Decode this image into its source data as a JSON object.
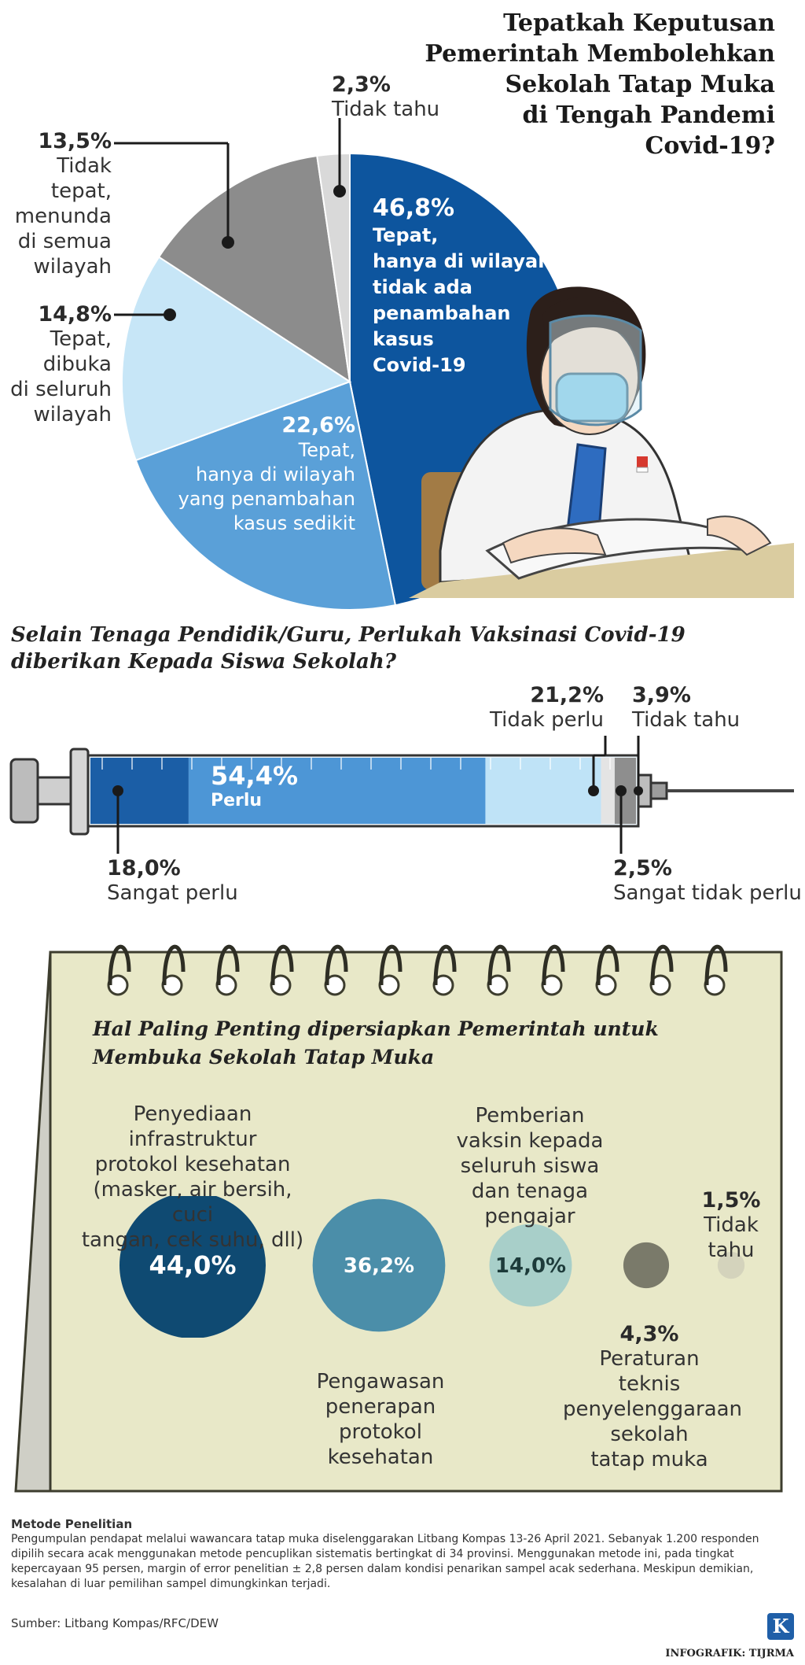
{
  "chart_data": [
    {
      "type": "pie",
      "title": "Tepatkah Keputusan Pemerintah Membolehkan Sekolah Tatap Muka di Tengah Pandemi Covid-19?",
      "slices": [
        {
          "value": 46.8,
          "pct": "46,8%",
          "label": "Tepat, hanya di wilayah tidak ada penambahan kasus Covid-19",
          "lines": [
            "Tepat,",
            "hanya di wilayah",
            "tidak ada",
            "penambahan",
            "kasus",
            "Covid-19"
          ],
          "color": "#0d559e"
        },
        {
          "value": 22.6,
          "pct": "22,6%",
          "label": "Tepat, hanya di wilayah yang penambahan kasus sedikit",
          "lines": [
            "Tepat,",
            "hanya di wilayah",
            "yang penambahan",
            "kasus sedikit"
          ],
          "color": "#5aa0d8"
        },
        {
          "value": 14.8,
          "pct": "14,8%",
          "label": "Tepat, dibuka di seluruh wilayah",
          "lines": [
            "Tepat,",
            "dibuka",
            "di seluruh",
            "wilayah"
          ],
          "color": "#c7e6f7"
        },
        {
          "value": 13.5,
          "pct": "13,5%",
          "label": "Tidak tepat, menunda di semua wilayah",
          "lines": [
            "Tidak tepat,",
            "menunda",
            "di semua",
            "wilayah"
          ],
          "color": "#8c8c8c"
        },
        {
          "value": 2.3,
          "pct": "2,3%",
          "label": "Tidak tahu",
          "lines": [
            "Tidak tahu"
          ],
          "color": "#d9d9d9"
        }
      ]
    },
    {
      "type": "bar",
      "subtype": "stacked-syringe",
      "title": "Selain Tenaga Pendidik/Guru, Perlukah Vaksinasi Covid-19 diberikan Kepada Siswa Sekolah?",
      "segments": [
        {
          "value": 18.0,
          "pct": "18,0%",
          "label": "Sangat perlu",
          "color": "#1b5ea6"
        },
        {
          "value": 54.4,
          "pct": "54,4%",
          "label": "Perlu",
          "color": "#4d96d6"
        },
        {
          "value": 21.2,
          "pct": "21,2%",
          "label": "Tidak perlu",
          "color": "#bfe3f7"
        },
        {
          "value": 2.5,
          "pct": "2,5%",
          "label": "Sangat tidak perlu",
          "color": "#e4e4e4"
        },
        {
          "value": 3.9,
          "pct": "3,9%",
          "label": "Tidak tahu",
          "color": "#8e8e8e"
        }
      ]
    },
    {
      "type": "scatter",
      "subtype": "bubble",
      "title": "Hal Paling Penting dipersiapkan Pemerintah untuk Membuka Sekolah Tatap Muka",
      "bubbles": [
        {
          "value": 44.0,
          "pct": "44,0%",
          "label": "Penyediaan infrastruktur protokol kesehatan (masker, air bersih, cuci tangan, cek suhu, dll)",
          "lines": [
            "Penyediaan infrastruktur",
            "protokol kesehatan",
            "(masker, air bersih, cuci",
            "tangan, cek suhu, dll)"
          ],
          "color": "#0f4a72"
        },
        {
          "value": 36.2,
          "pct": "36,2%",
          "label": "Pengawasan penerapan protokol kesehatan",
          "lines": [
            "Pengawasan",
            "penerapan protokol",
            "kesehatan"
          ],
          "color": "#4b8ea9"
        },
        {
          "value": 14.0,
          "pct": "14,0%",
          "label": "Pemberian vaksin kepada seluruh siswa dan tenaga pengajar",
          "lines": [
            "Pemberian",
            "vaksin kepada",
            "seluruh siswa",
            "dan tenaga",
            "pengajar"
          ],
          "color": "#a8cfc9"
        },
        {
          "value": 4.3,
          "pct": "4,3%",
          "label": "Peraturan teknis penyelenggaraan sekolah tatap muka",
          "lines": [
            "Peraturan",
            "teknis",
            "penyelenggaraan",
            "sekolah",
            "tatap muka"
          ],
          "color": "#7a7a6a"
        },
        {
          "value": 1.5,
          "pct": "1,5%",
          "label": "Tidak tahu",
          "lines": [
            "Tidak",
            "tahu"
          ],
          "color": "#d4d3bc"
        }
      ]
    }
  ],
  "header": {
    "title_lines": [
      "Tepatkah Keputusan",
      "Pemerintah Membolehkan",
      "Sekolah Tatap Muka",
      "di Tengah Pandemi",
      "Covid-19?"
    ]
  },
  "syringe_section": {
    "title_lines": [
      "Selain Tenaga Pendidik/Guru, Perlukah Vaksinasi Covid-19",
      "diberikan Kepada Siswa Sekolah?"
    ]
  },
  "calendar_section": {
    "title_lines": [
      "Hal Paling Penting dipersiapkan Pemerintah untuk",
      "Membuka Sekolah Tatap Muka"
    ]
  },
  "footer": {
    "method_title": "Metode Penelitian",
    "method_lines": [
      "Pengumpulan pendapat melalui wawancara tatap muka diselenggarakan Litbang Kompas 13-26 April 2021. Sebanyak 1.200 responden",
      "dipilih secara acak menggunakan metode pencuplikan sistematis bertingkat di 34 provinsi. Menggunakan metode ini, pada tingkat",
      "kepercayaan 95 persen, margin of error penelitian ± 2,8 persen dalam kondisi penarikan sampel acak sederhana. Meskipun demikian,",
      "kesalahan di luar pemilihan sampel dimungkinkan terjadi."
    ],
    "source": "Sumber: Litbang Kompas/RFC/DEW",
    "credit": "INFOGRAFIK: TIJRMA",
    "logo_letter": "K"
  },
  "colors": {
    "calendar_bg": "#e8e8c8",
    "calendar_border": "#3d3d2e",
    "navy": "#0d559e"
  }
}
